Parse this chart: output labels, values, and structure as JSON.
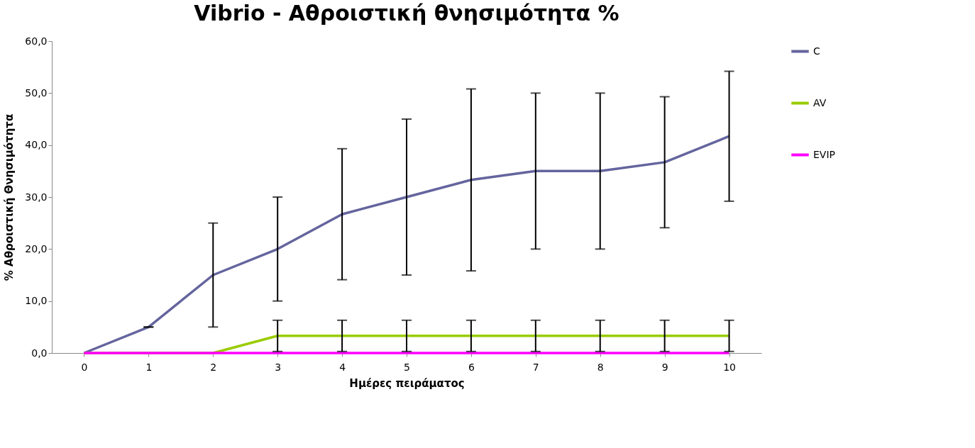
{
  "chart_data": {
    "type": "line",
    "title": "Vibrio - Αθροιστική θνησιμότητα %",
    "xlabel": "Ημέρες πειράματος",
    "ylabel": "% Αθροιστική Θνησιμότητα",
    "categories": [
      "0",
      "1",
      "2",
      "3",
      "4",
      "5",
      "6",
      "7",
      "8",
      "9",
      "10"
    ],
    "series": [
      {
        "name": "C",
        "color": "#64649e",
        "values": [
          0,
          5.0,
          15.0,
          20.0,
          26.7,
          30.0,
          33.3,
          35.0,
          35.0,
          36.7,
          41.7
        ],
        "errors": [
          null,
          0,
          10.0,
          10.0,
          12.6,
          15.0,
          17.5,
          15.0,
          15.0,
          12.6,
          12.5
        ]
      },
      {
        "name": "AV",
        "color": "#99cc00",
        "values": [
          0,
          0,
          0,
          3.3,
          3.3,
          3.3,
          3.3,
          3.3,
          3.3,
          3.3,
          3.3
        ],
        "errors": [
          null,
          null,
          null,
          3.0,
          3.0,
          3.0,
          3.0,
          3.0,
          3.0,
          3.0,
          3.0
        ]
      },
      {
        "name": "EVIP",
        "color": "#ff00ff",
        "values": [
          0,
          0,
          0,
          0,
          0,
          0,
          0,
          0,
          0,
          0,
          0
        ]
      }
    ],
    "ylim": [
      0,
      60
    ],
    "yticks": [
      {
        "value": 0,
        "label": "0,0"
      },
      {
        "value": 10,
        "label": "10,0"
      },
      {
        "value": 20,
        "label": "20,0"
      },
      {
        "value": 30,
        "label": "30,0"
      },
      {
        "value": 40,
        "label": "40,0"
      },
      {
        "value": 50,
        "label": "50,0"
      },
      {
        "value": 60,
        "label": "60,0"
      }
    ],
    "grid": false,
    "legend": "right",
    "marker": "none",
    "line_style": "solid"
  }
}
